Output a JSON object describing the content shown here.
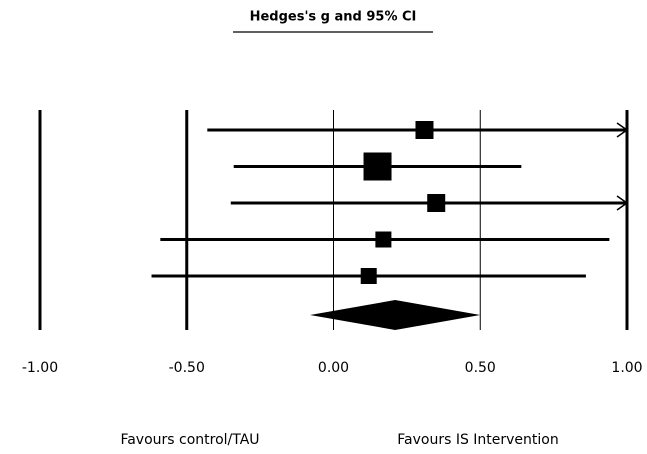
{
  "chart_data": {
    "type": "forest",
    "title": "Hedges's g and 95% CI",
    "studies": [
      {
        "estimate": 0.31,
        "lower": -0.43,
        "upper": 1.1,
        "weight": 18
      },
      {
        "estimate": 0.15,
        "lower": -0.34,
        "upper": 0.64,
        "weight": 28
      },
      {
        "estimate": 0.35,
        "lower": -0.35,
        "upper": 1.1,
        "weight": 18
      },
      {
        "estimate": 0.17,
        "lower": -0.59,
        "upper": 0.94,
        "weight": 16
      },
      {
        "estimate": 0.12,
        "lower": -0.62,
        "upper": 0.86,
        "weight": 16
      }
    ],
    "summary": {
      "estimate": 0.21,
      "lower": -0.08,
      "upper": 0.5
    },
    "color": "#000000",
    "xlim": [
      -1,
      1
    ],
    "xticks": [
      {
        "value": -1,
        "label": "-1.00"
      },
      {
        "value": -0.5,
        "label": "-0.50"
      },
      {
        "value": 0,
        "label": "0.00"
      },
      {
        "value": 0.5,
        "label": "0.50"
      },
      {
        "value": 1,
        "label": "1.00"
      }
    ],
    "grid": true,
    "left_label": "Favours control/TAU",
    "right_label": "Favours IS Intervention"
  }
}
